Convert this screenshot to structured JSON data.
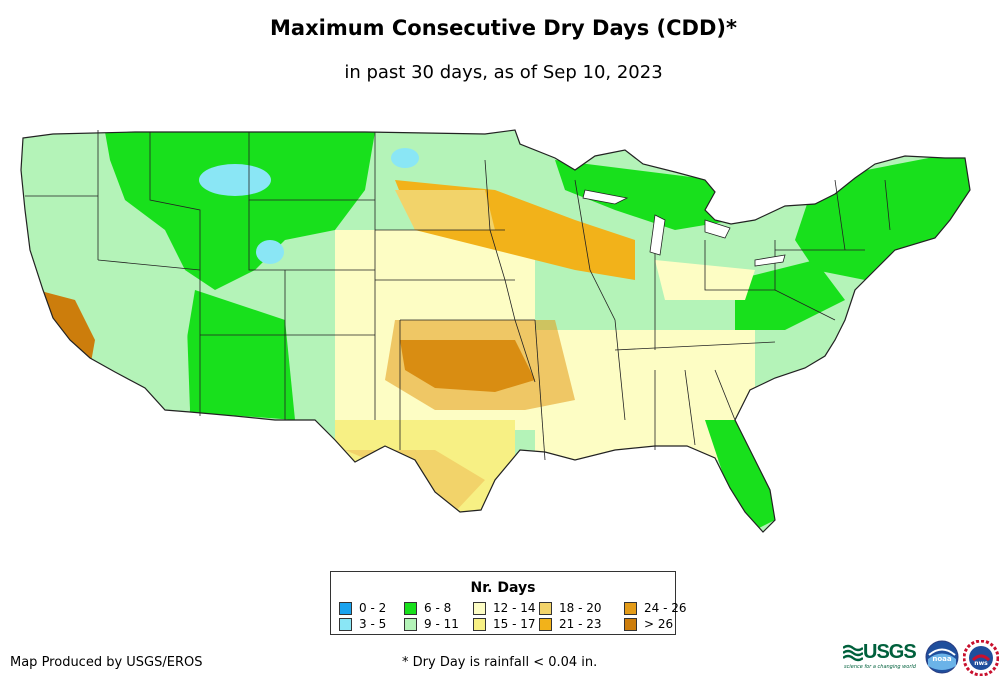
{
  "title": "Maximum Consecutive Dry Days (CDD)*",
  "subtitle": "in past 30 days, as of Sep 10, 2023",
  "legend": {
    "title": "Nr. Days",
    "items": [
      {
        "label": "0 - 2",
        "color": "#1aa3ef"
      },
      {
        "label": "3 - 5",
        "color": "#8ae6f5"
      },
      {
        "label": "6 - 8",
        "color": "#18e01c"
      },
      {
        "label": "9 - 11",
        "color": "#b4f3b8"
      },
      {
        "label": "12 - 14",
        "color": "#fdfdc4"
      },
      {
        "label": "15 - 17",
        "color": "#f7f084"
      },
      {
        "label": "18 - 20",
        "color": "#f2d36a"
      },
      {
        "label": "21 - 23",
        "color": "#f2b21a"
      },
      {
        "label": "24 - 26",
        "color": "#e39b18"
      },
      {
        "label": "> 26",
        "color": "#cc7d0c"
      }
    ]
  },
  "credit": "Map Produced by USGS/EROS",
  "footnote": "* Dry Day is rainfall < 0.04 in.",
  "logos": {
    "usgs": "USGS",
    "usgs_tagline": "science for a changing world",
    "noaa": "noaa",
    "nws": "nws"
  },
  "map_data": {
    "region": "Contiguous United States",
    "regions_by_class": [
      {
        "region": "Northern Rockies / Montana",
        "class": "6 - 8"
      },
      {
        "region": "Northeast / New England",
        "class": "6 - 8"
      },
      {
        "region": "Upper Great Lakes",
        "class": "6 - 8"
      },
      {
        "region": "Arizona / New Mexico west",
        "class": "6 - 8"
      },
      {
        "region": "Florida / Southeast coast",
        "class": "6 - 8"
      },
      {
        "region": "Idaho / Wyoming pockets",
        "class": "3 - 5"
      },
      {
        "region": "Great Plains (Nebraska/Kansas)",
        "class": "12 - 14"
      },
      {
        "region": "Iowa / Illinois",
        "class": "21 - 23"
      },
      {
        "region": "Oklahoma",
        "class": "> 26"
      },
      {
        "region": "Central California",
        "class": "> 26"
      },
      {
        "region": "Texas",
        "class": "15 - 17"
      },
      {
        "region": "Nevada / Great Basin",
        "class": "9 - 11"
      }
    ]
  },
  "colors": {
    "ocean": "#ffffff",
    "state_border": "#222222",
    "usgs_green": "#00603c",
    "noaa_blue": "#1f4e9c"
  }
}
